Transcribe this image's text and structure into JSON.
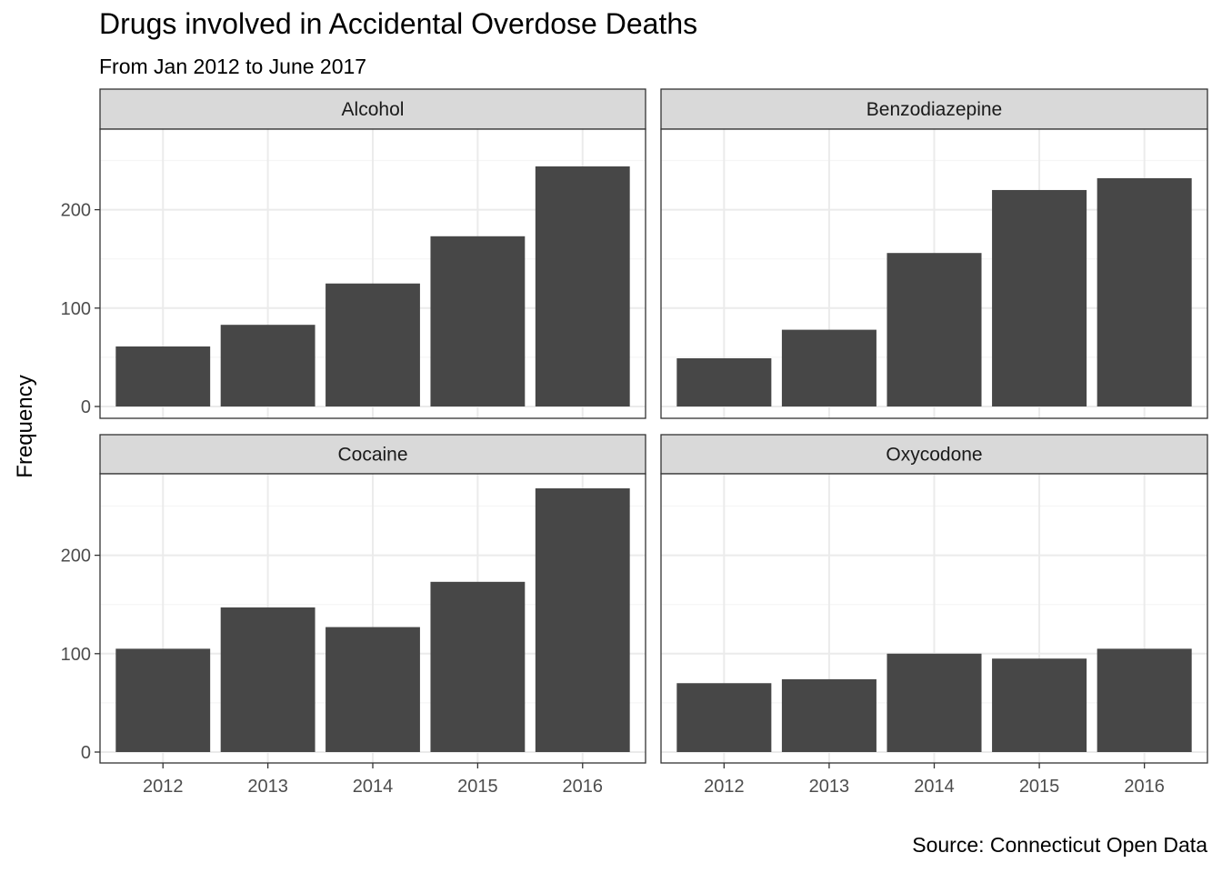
{
  "chart_data": {
    "type": "bar",
    "title": "Drugs involved in Accidental Overdose Deaths",
    "subtitle": "From Jan 2012 to June 2017",
    "caption": "Source: Connecticut Open Data",
    "xlabel": "",
    "ylabel": "Frequency",
    "categories": [
      "2012",
      "2013",
      "2014",
      "2015",
      "2016"
    ],
    "ylim": [
      0,
      282
    ],
    "yticks": [
      0,
      100,
      200
    ],
    "grid": true,
    "facets": [
      {
        "name": "Alcohol",
        "values": [
          61,
          83,
          125,
          173,
          244
        ]
      },
      {
        "name": "Benzodiazepine",
        "values": [
          49,
          78,
          156,
          220,
          232
        ]
      },
      {
        "name": "Cocaine",
        "values": [
          105,
          147,
          127,
          173,
          268
        ]
      },
      {
        "name": "Oxycodone",
        "values": [
          70,
          74,
          100,
          95,
          105
        ]
      }
    ],
    "colors": {
      "bar": "#474747",
      "strip": "#d9d9d9",
      "grid_major": "#ebebeb",
      "grid_minor": "#f5f5f5",
      "border": "#333333"
    }
  }
}
